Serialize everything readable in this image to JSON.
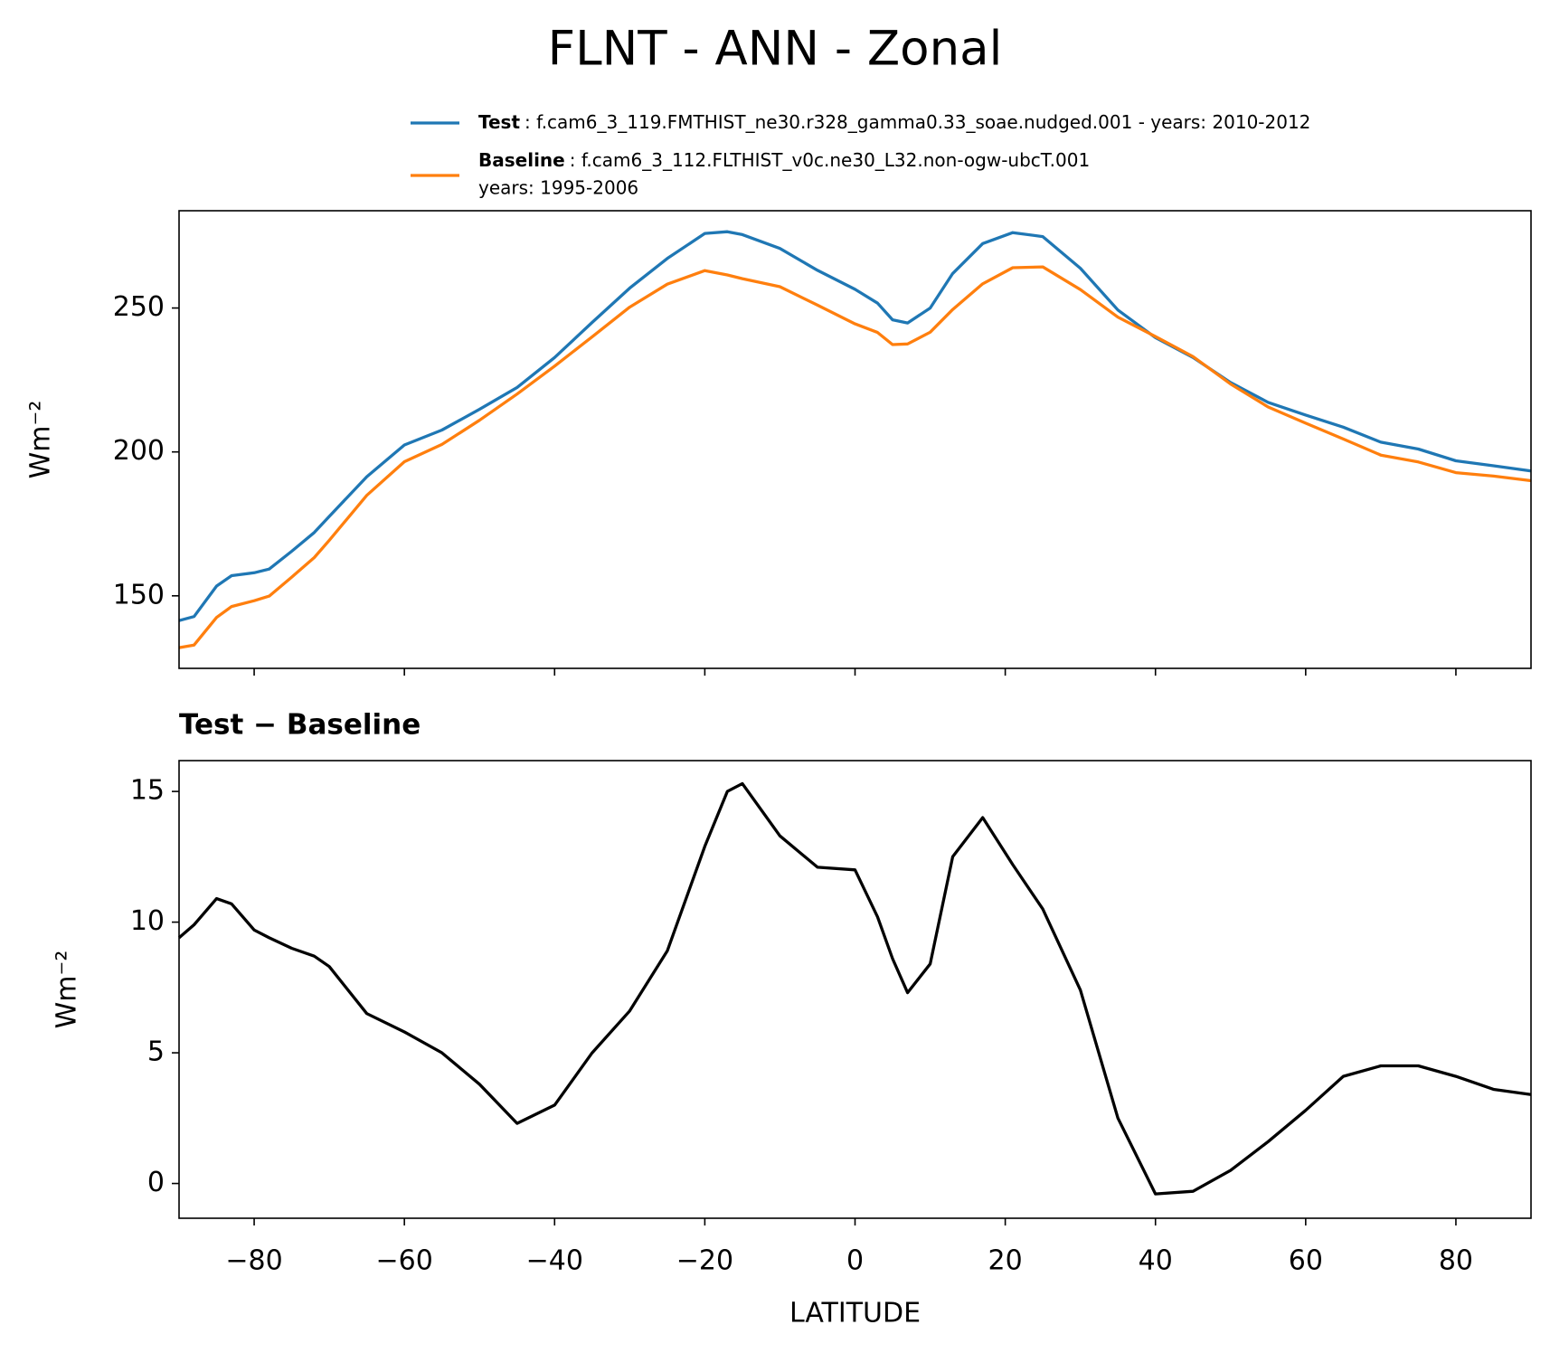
{
  "title": "FLNT - ANN - Zonal",
  "chart_data": [
    {
      "type": "line",
      "ylabel": "Wm⁻²",
      "xlim": [
        -90,
        90
      ],
      "xticks": [
        -80,
        -60,
        -40,
        -20,
        0,
        20,
        40,
        60,
        80
      ],
      "xticklabels": false,
      "ylim": [
        124.8,
        283.8
      ],
      "yticks": [
        150,
        200,
        250
      ],
      "x": [
        -90,
        -88,
        -85,
        -83,
        -80,
        -78,
        -75,
        -72,
        -70,
        -65,
        -60,
        -55,
        -50,
        -45,
        -40,
        -35,
        -30,
        -25,
        -20,
        -17,
        -15,
        -10,
        -5,
        0,
        3,
        5,
        7,
        10,
        13,
        17,
        21,
        25,
        30,
        35,
        40,
        45,
        50,
        55,
        60,
        65,
        70,
        75,
        80,
        85,
        90
      ],
      "series": [
        {
          "name": "Test",
          "description": [
            ": f.cam6_3_119.FMTHIST_ne30.r328_gamma0.33_soae.nudged.001 - years: 2010-2012"
          ],
          "color": "#1f77b4",
          "values": [
            141.4,
            142.8,
            153.4,
            157,
            158,
            159.3,
            165.5,
            172,
            177.6,
            191.4,
            202.4,
            207.6,
            214.8,
            222.4,
            232.8,
            245,
            256.9,
            267.2,
            275.9,
            276.5,
            275.5,
            270.7,
            263.1,
            256.5,
            251.7,
            245.9,
            244.8,
            250,
            262,
            272.4,
            276.2,
            274.8,
            263.8,
            249.3,
            239.7,
            232.8,
            224.1,
            217.2,
            212.8,
            208.6,
            203.4,
            201,
            196.9,
            195.2,
            193.4
          ]
        },
        {
          "name": "Baseline",
          "description": [
            ": f.cam6_3_112.FLTHIST_v0c.ne30_L32.non-ogw-ubcT.001",
            "years: 1995-2006"
          ],
          "color": "#ff7f0e",
          "values": [
            132.0,
            132.9,
            142.5,
            146.3,
            148.3,
            149.9,
            156.5,
            163.3,
            169.3,
            184.9,
            196.6,
            202.6,
            211.0,
            220.1,
            229.8,
            240.0,
            250.3,
            258.3,
            263.0,
            261.5,
            260.2,
            257.4,
            251.0,
            244.5,
            241.5,
            237.3,
            237.5,
            241.6,
            249.5,
            258.4,
            264.0,
            264.3,
            256.4,
            246.8,
            240.1,
            233.1,
            223.6,
            215.6,
            210.0,
            204.5,
            198.9,
            196.5,
            192.8,
            191.6,
            190.0
          ]
        }
      ]
    },
    {
      "type": "line",
      "title": "Test − Baseline",
      "ylabel": "Wm⁻²",
      "xlabel": "LATITUDE",
      "xlim": [
        -90,
        90
      ],
      "xticks": [
        {
          "value": -80,
          "label": "−80"
        },
        {
          "value": -60,
          "label": "−60"
        },
        {
          "value": -40,
          "label": "−40"
        },
        {
          "value": -20,
          "label": "−20"
        },
        0,
        20,
        40,
        60,
        80
      ],
      "xticklabels": true,
      "ylim": [
        -1.33,
        16.18
      ],
      "yticks": [
        0,
        5,
        10,
        15
      ],
      "x": [
        -90,
        -88,
        -85,
        -83,
        -80,
        -78,
        -75,
        -72,
        -70,
        -65,
        -60,
        -55,
        -50,
        -45,
        -40,
        -35,
        -30,
        -25,
        -20,
        -17,
        -15,
        -10,
        -5,
        0,
        3,
        5,
        7,
        10,
        13,
        17,
        21,
        25,
        30,
        35,
        40,
        45,
        50,
        55,
        60,
        65,
        70,
        75,
        80,
        85,
        90
      ],
      "series": [
        {
          "color": "#000000",
          "values": [
            9.4,
            9.9,
            10.9,
            10.7,
            9.7,
            9.4,
            9.0,
            8.7,
            8.3,
            6.5,
            5.8,
            5.0,
            3.8,
            2.3,
            3.0,
            5.0,
            6.6,
            8.9,
            12.9,
            15.0,
            15.3,
            13.3,
            12.1,
            12.0,
            10.2,
            8.6,
            7.3,
            8.4,
            12.5,
            14.0,
            12.2,
            10.5,
            7.4,
            2.5,
            -0.4,
            -0.3,
            0.5,
            1.6,
            2.8,
            4.1,
            4.5,
            4.5,
            4.1,
            3.6,
            3.4
          ]
        }
      ]
    }
  ]
}
